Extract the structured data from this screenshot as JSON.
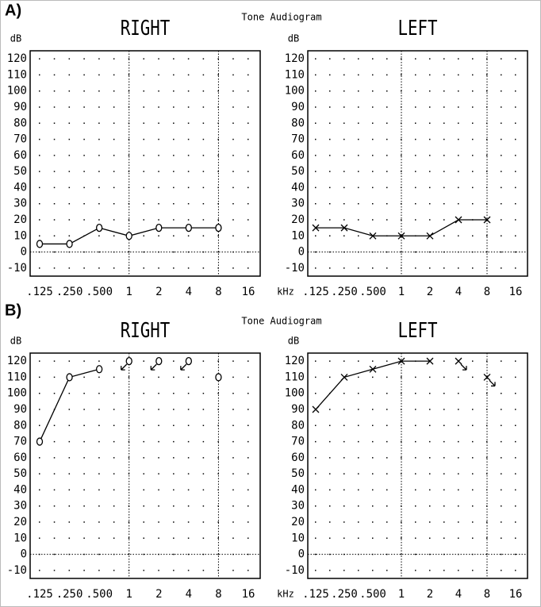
{
  "panels": [
    {
      "label": "A)",
      "title": "Tone Audiogram"
    },
    {
      "label": "B)",
      "title": "Tone Audiogram"
    }
  ],
  "chart_data": [
    {
      "type": "line",
      "title": "RIGHT",
      "ylabel": "dB",
      "categories": [
        ".125",
        ".250",
        ".500",
        "1",
        "2",
        "4",
        "8",
        "16"
      ],
      "ylim": [
        -15,
        125
      ],
      "yticks": [
        -10,
        0,
        10,
        20,
        30,
        40,
        50,
        60,
        70,
        80,
        90,
        100,
        110,
        120
      ],
      "grid": "dotted",
      "reference_y": 0,
      "reference_x": [
        "1",
        "8"
      ],
      "series": [
        {
          "marker": "o",
          "color": "#000000",
          "values": [
            5,
            5,
            15,
            10,
            15,
            15,
            15,
            null
          ],
          "no_response_values": [
            null,
            null,
            null,
            null,
            null,
            null,
            null,
            null
          ],
          "no_response_arrow": "left"
        }
      ]
    },
    {
      "type": "line",
      "title": "LEFT",
      "ylabel": "dB",
      "xlabel": "kHz",
      "categories": [
        ".125",
        ".250",
        ".500",
        "1",
        "2",
        "4",
        "8",
        "16"
      ],
      "ylim": [
        -15,
        125
      ],
      "yticks": [
        -10,
        0,
        10,
        20,
        30,
        40,
        50,
        60,
        70,
        80,
        90,
        100,
        110,
        120
      ],
      "grid": "dotted",
      "reference_y": 0,
      "reference_x": [
        "1",
        "8"
      ],
      "series": [
        {
          "marker": "x",
          "color": "#000000",
          "values": [
            15,
            15,
            10,
            10,
            10,
            20,
            20,
            null
          ],
          "no_response_values": [
            null,
            null,
            null,
            null,
            null,
            null,
            null,
            null
          ],
          "no_response_arrow": "right"
        }
      ]
    },
    {
      "type": "line",
      "title": "RIGHT",
      "ylabel": "dB",
      "categories": [
        ".125",
        ".250",
        ".500",
        "1",
        "2",
        "4",
        "8",
        "16"
      ],
      "ylim": [
        -15,
        125
      ],
      "yticks": [
        -10,
        0,
        10,
        20,
        30,
        40,
        50,
        60,
        70,
        80,
        90,
        100,
        110,
        120
      ],
      "grid": "dotted",
      "reference_y": 0,
      "reference_x": [
        "1",
        "8"
      ],
      "series": [
        {
          "marker": "o",
          "color": "#000000",
          "values": [
            70,
            110,
            115,
            null,
            null,
            null,
            110,
            null
          ],
          "no_response_values": [
            null,
            null,
            null,
            120,
            120,
            120,
            null,
            null
          ],
          "no_response_arrow": "left"
        }
      ]
    },
    {
      "type": "line",
      "title": "LEFT",
      "ylabel": "dB",
      "xlabel": "kHz",
      "categories": [
        ".125",
        ".250",
        ".500",
        "1",
        "2",
        "4",
        "8",
        "16"
      ],
      "ylim": [
        -15,
        125
      ],
      "yticks": [
        -10,
        0,
        10,
        20,
        30,
        40,
        50,
        60,
        70,
        80,
        90,
        100,
        110,
        120
      ],
      "grid": "dotted",
      "reference_y": 0,
      "reference_x": [
        "1",
        "8"
      ],
      "series": [
        {
          "marker": "x",
          "color": "#000000",
          "values": [
            90,
            110,
            115,
            120,
            120,
            null,
            null,
            null
          ],
          "no_response_values": [
            null,
            null,
            null,
            null,
            null,
            120,
            110,
            null
          ],
          "no_response_arrow": "right"
        }
      ]
    }
  ]
}
